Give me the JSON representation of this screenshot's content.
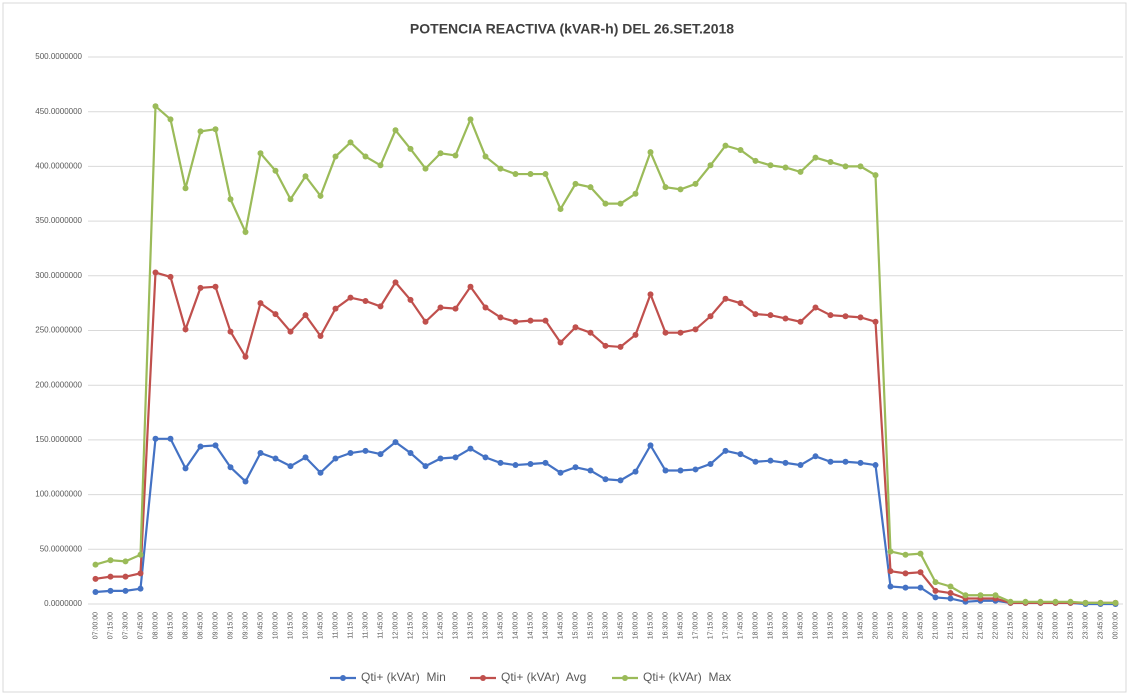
{
  "chart_data": {
    "type": "line",
    "title": "POTENCIA REACTIVA (kVAR-h)  DEL 26.SET.2018",
    "categories": [
      "07:00:00",
      "07:15:00",
      "07:30:00",
      "07:45:00",
      "08:00:00",
      "08:15:00",
      "08:30:00",
      "08:45:00",
      "09:00:00",
      "09:15:00",
      "09:30:00",
      "09:45:00",
      "10:00:00",
      "10:15:00",
      "10:30:00",
      "10:45:00",
      "11:00:00",
      "11:15:00",
      "11:30:00",
      "11:45:00",
      "12:00:00",
      "12:15:00",
      "12:30:00",
      "12:45:00",
      "13:00:00",
      "13:15:00",
      "13:30:00",
      "13:45:00",
      "14:00:00",
      "14:15:00",
      "14:30:00",
      "14:45:00",
      "15:00:00",
      "15:15:00",
      "15:30:00",
      "15:45:00",
      "16:00:00",
      "16:15:00",
      "16:30:00",
      "16:45:00",
      "17:00:00",
      "17:15:00",
      "17:30:00",
      "17:45:00",
      "18:00:00",
      "18:15:00",
      "18:30:00",
      "18:45:00",
      "19:00:00",
      "19:15:00",
      "19:30:00",
      "19:45:00",
      "20:00:00",
      "20:15:00",
      "20:30:00",
      "20:45:00",
      "21:00:00",
      "21:15:00",
      "21:30:00",
      "21:45:00",
      "22:00:00",
      "22:15:00",
      "22:30:00",
      "22:45:00",
      "23:00:00",
      "23:15:00",
      "23:30:00",
      "23:45:00",
      "00:00:00"
    ],
    "series": [
      {
        "name": "Qti+ (kVAr)  Min",
        "color": "#4472c4",
        "values": [
          11,
          12,
          12,
          14,
          151,
          151,
          124,
          144,
          145,
          125,
          112,
          138,
          133,
          126,
          134,
          120,
          133,
          138,
          140,
          137,
          148,
          138,
          126,
          133,
          134,
          142,
          134,
          129,
          127,
          128,
          129,
          120,
          125,
          122,
          114,
          113,
          121,
          145,
          122,
          122,
          123,
          128,
          140,
          137,
          130,
          131,
          129,
          127,
          135,
          130,
          130,
          129,
          127,
          16,
          15,
          15,
          6,
          5,
          2,
          3,
          3,
          1,
          1,
          1,
          1,
          1,
          0,
          0,
          0
        ]
      },
      {
        "name": "Qti+ (kVAr)  Avg",
        "color": "#c0504d",
        "values": [
          23,
          25,
          25,
          28,
          303,
          299,
          251,
          289,
          290,
          249,
          226,
          275,
          265,
          249,
          264,
          245,
          270,
          280,
          277,
          272,
          294,
          278,
          258,
          271,
          270,
          290,
          271,
          262,
          258,
          259,
          259,
          239,
          253,
          248,
          236,
          235,
          246,
          283,
          248,
          248,
          251,
          263,
          279,
          275,
          265,
          264,
          261,
          258,
          271,
          264,
          263,
          262,
          258,
          30,
          28,
          29,
          12,
          10,
          5,
          5,
          5,
          1,
          1,
          1,
          1,
          1,
          1,
          1,
          1
        ]
      },
      {
        "name": "Qti+ (kVAr)  Max",
        "color": "#9bbb59",
        "values": [
          36,
          40,
          39,
          45,
          455,
          443,
          380,
          432,
          434,
          370,
          340,
          412,
          396,
          370,
          391,
          373,
          409,
          422,
          409,
          401,
          433,
          416,
          398,
          412,
          410,
          443,
          409,
          398,
          393,
          393,
          393,
          361,
          384,
          381,
          366,
          366,
          375,
          413,
          381,
          379,
          384,
          401,
          419,
          415,
          405,
          401,
          399,
          395,
          408,
          404,
          400,
          400,
          392,
          48,
          45,
          46,
          20,
          16,
          8,
          8,
          8,
          2,
          2,
          2,
          2,
          2,
          1,
          1,
          1
        ]
      }
    ],
    "ylim": [
      0,
      500
    ],
    "yticks": [
      {
        "value": 0,
        "label": "0.0000000"
      },
      {
        "value": 50,
        "label": "50.0000000"
      },
      {
        "value": 100,
        "label": "100.0000000"
      },
      {
        "value": 150,
        "label": "150.0000000"
      },
      {
        "value": 200,
        "label": "200.0000000"
      },
      {
        "value": 250,
        "label": "250.0000000"
      },
      {
        "value": 300,
        "label": "300.0000000"
      },
      {
        "value": 350,
        "label": "350.0000000"
      },
      {
        "value": 400,
        "label": "400.0000000"
      },
      {
        "value": 450,
        "label": "450.0000000"
      },
      {
        "value": 500,
        "label": "500.0000000"
      }
    ],
    "grid": true,
    "legend": "bottom"
  }
}
